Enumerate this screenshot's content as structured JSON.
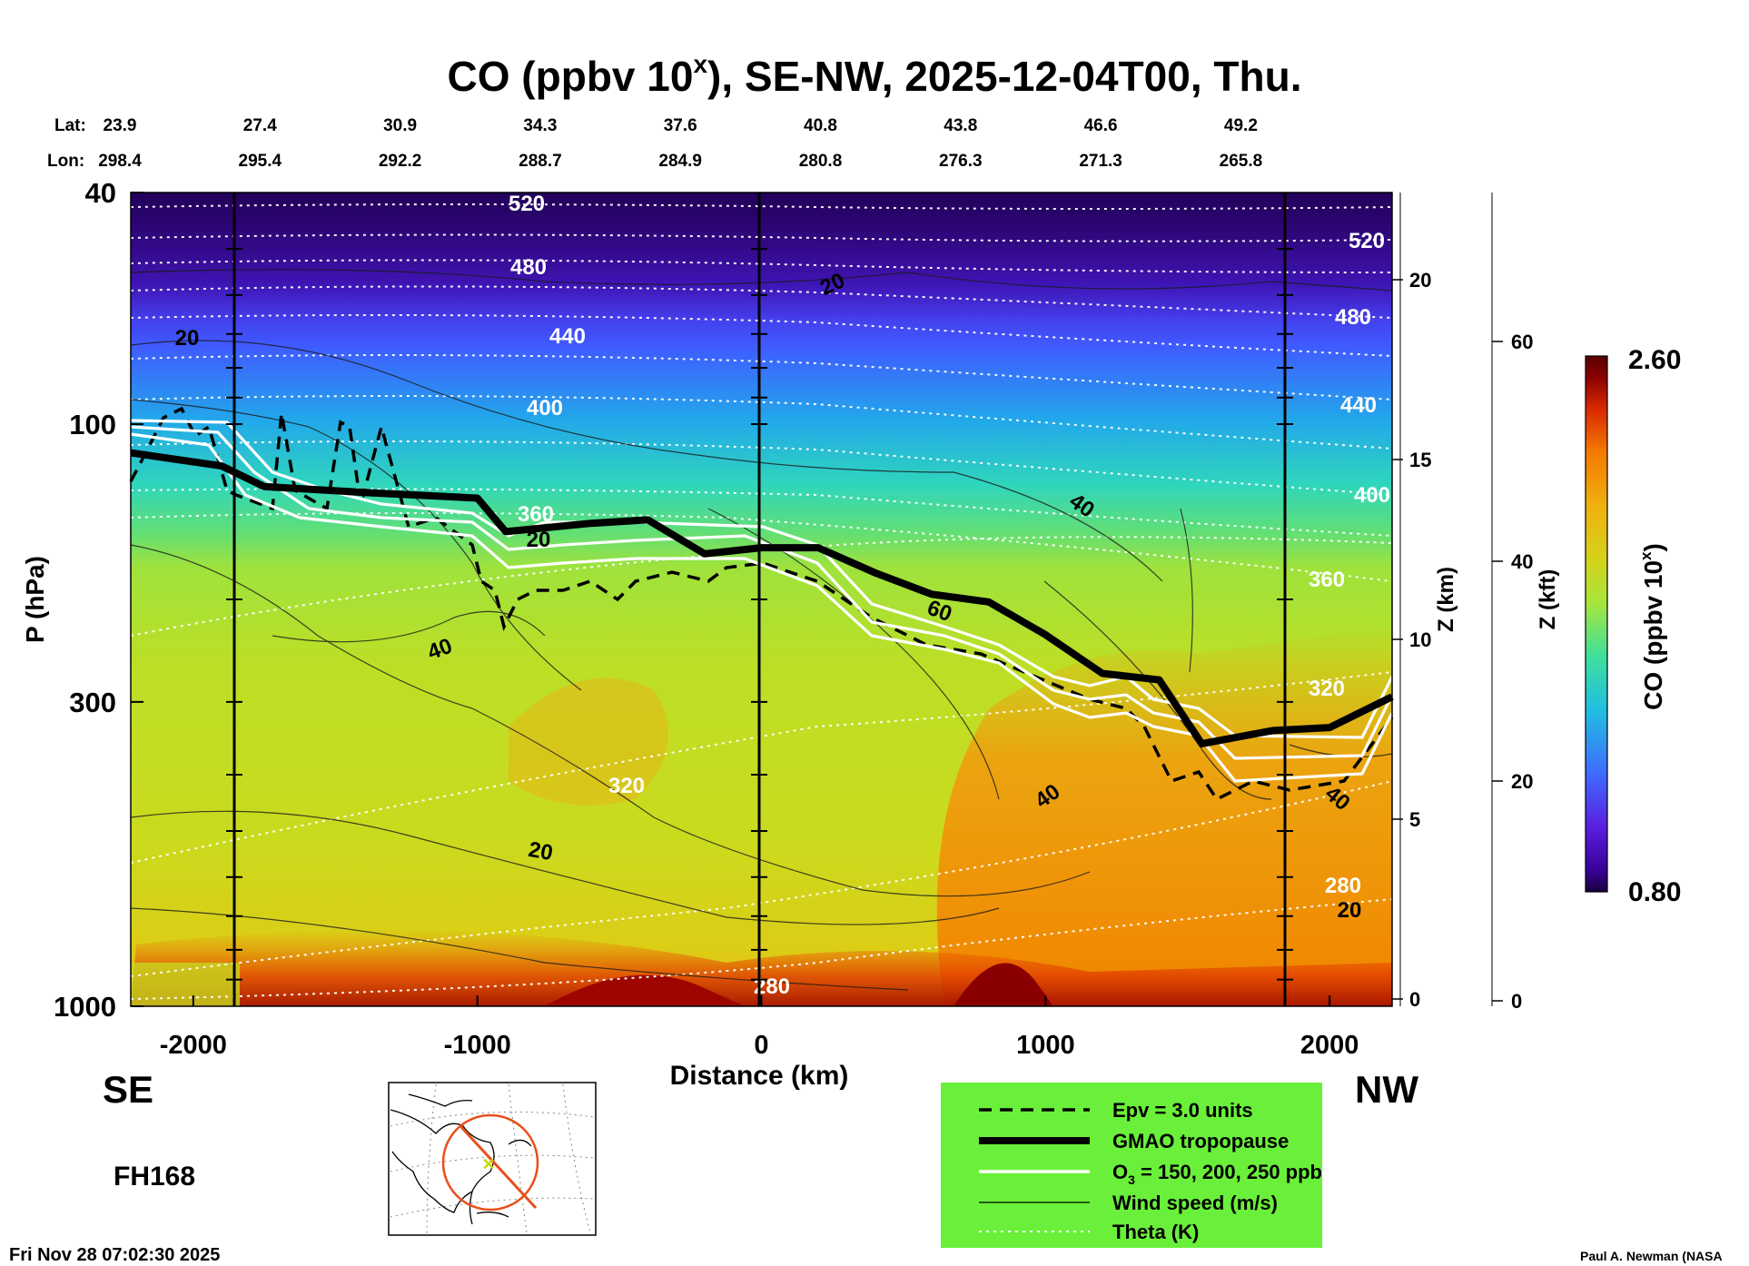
{
  "chart_data": {
    "type": "heatmap",
    "title_main": "CO (ppbv 10",
    "title_sup": "x",
    "title_rest": "), SE-NW, 2025-12-04T00, Thu.",
    "lat_label": "Lat:",
    "lon_label": "Lon:",
    "lat_values": [
      "23.9",
      "27.4",
      "30.9",
      "34.3",
      "37.6",
      "40.8",
      "43.8",
      "46.6",
      "49.2"
    ],
    "lon_values": [
      "298.4",
      "295.4",
      "292.2",
      "288.7",
      "284.9",
      "280.8",
      "276.3",
      "271.3",
      "265.8"
    ],
    "xlabel": "Distance (km)",
    "ylabel": "P (hPa)",
    "xticks": [
      -2000,
      -1000,
      0,
      1000,
      2000
    ],
    "xlim": [
      -2220,
      2220
    ],
    "yticks": [
      40,
      100,
      300,
      1000
    ],
    "ylim": [
      1000,
      40
    ],
    "y_scale": "log",
    "z_km_label": "Z (km)",
    "z_km_ticks": [
      0,
      5,
      10,
      15,
      20
    ],
    "z_kft_label": "Z (kft)",
    "z_kft_ticks": [
      0,
      20,
      40,
      60
    ],
    "colorbar_label": "CO (ppbv 10",
    "colorbar_sup": "x",
    "colorbar_close": ")",
    "colorbar_min": "0.80",
    "colorbar_max": "2.60",
    "left_end": "SE",
    "right_end": "NW",
    "forecast_hour": "FH168",
    "timestamp": "Fri Nov 28 07:02:30 2025",
    "credit": "Paul A. Newman (NASA",
    "legend": {
      "epv": "Epv = 3.0 units",
      "tropopause": "GMAO tropopause",
      "ozone_pre": "O",
      "ozone_sub": "3",
      "ozone_post": " = 150, 200, 250 ppb",
      "wind": "Wind speed (m/s)",
      "theta": "Theta (K)"
    },
    "theta_labels": [
      "520",
      "480",
      "440",
      "400",
      "360",
      "320",
      "280"
    ],
    "wind_labels": [
      "20",
      "40",
      "60"
    ],
    "tropopause_profile": {
      "x_km": [
        -2220,
        -1900,
        -1750,
        -1400,
        -1000,
        -900,
        -600,
        -400,
        -200,
        0,
        200,
        400,
        600,
        800,
        1000,
        1200,
        1400,
        1550,
        1800,
        2000,
        2220
      ],
      "p_hpa": [
        112,
        118,
        128,
        131,
        134,
        153,
        148,
        146,
        167,
        163,
        163,
        180,
        196,
        202,
        230,
        268,
        275,
        354,
        336,
        332,
        294
      ]
    },
    "colors": {
      "colorbar_stops": [
        "#15003e",
        "#3a0099",
        "#5a1ee0",
        "#3f6bff",
        "#20bfe0",
        "#3ee09b",
        "#a8e53c",
        "#d4d21a",
        "#f0b010",
        "#f47a00",
        "#d92a00",
        "#8a0000",
        "#5a0000"
      ],
      "legend_background": "#6af03a",
      "map_marker": "#e8501c"
    }
  }
}
